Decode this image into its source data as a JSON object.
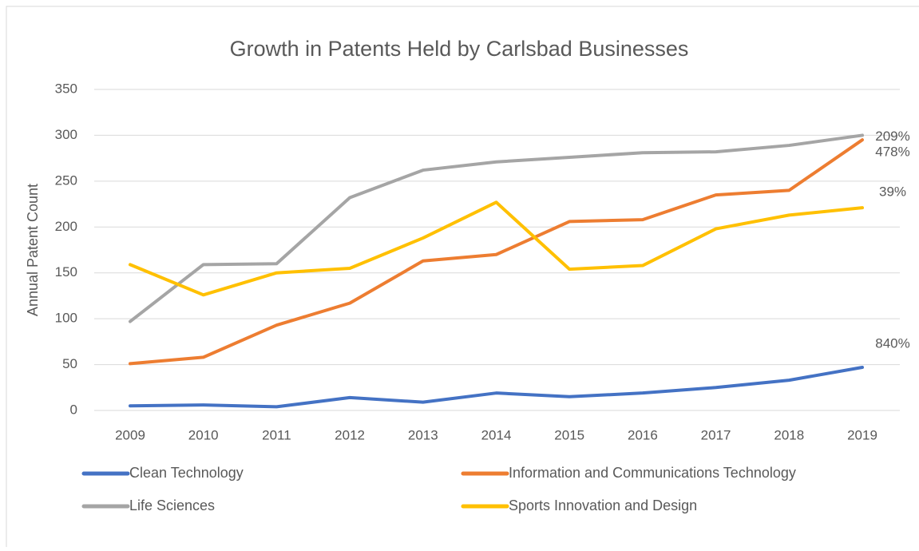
{
  "chart_data": {
    "type": "line",
    "title": "Growth in Patents Held by Carlsbad Businesses",
    "y_label": "Annual Patent Count",
    "categories": [
      "2009",
      "2010",
      "2011",
      "2012",
      "2013",
      "2014",
      "2015",
      "2016",
      "2017",
      "2018",
      "2019"
    ],
    "series": [
      {
        "name": "Clean Technology",
        "color": "#4472c4",
        "values": [
          5,
          6,
          4,
          14,
          9,
          19,
          15,
          19,
          25,
          33,
          47
        ],
        "end_label": "840%"
      },
      {
        "name": "Information and Communications Technology",
        "color": "#ed7d31",
        "values": [
          51,
          58,
          93,
          117,
          163,
          170,
          206,
          208,
          235,
          240,
          295
        ],
        "end_label": "478%"
      },
      {
        "name": "Life Sciences",
        "color": "#a5a5a5",
        "values": [
          97,
          159,
          160,
          232,
          262,
          271,
          276,
          281,
          282,
          289,
          300
        ],
        "end_label": "209%"
      },
      {
        "name": "Sports Innovation and Design",
        "color": "#ffc000",
        "values": [
          159,
          126,
          150,
          155,
          188,
          227,
          154,
          158,
          198,
          213,
          221
        ],
        "end_label": "39%"
      }
    ],
    "ylim": [
      0,
      350
    ],
    "yticks": [
      0,
      50,
      100,
      150,
      200,
      250,
      300,
      350
    ],
    "grid": true,
    "legend": "bottom"
  }
}
